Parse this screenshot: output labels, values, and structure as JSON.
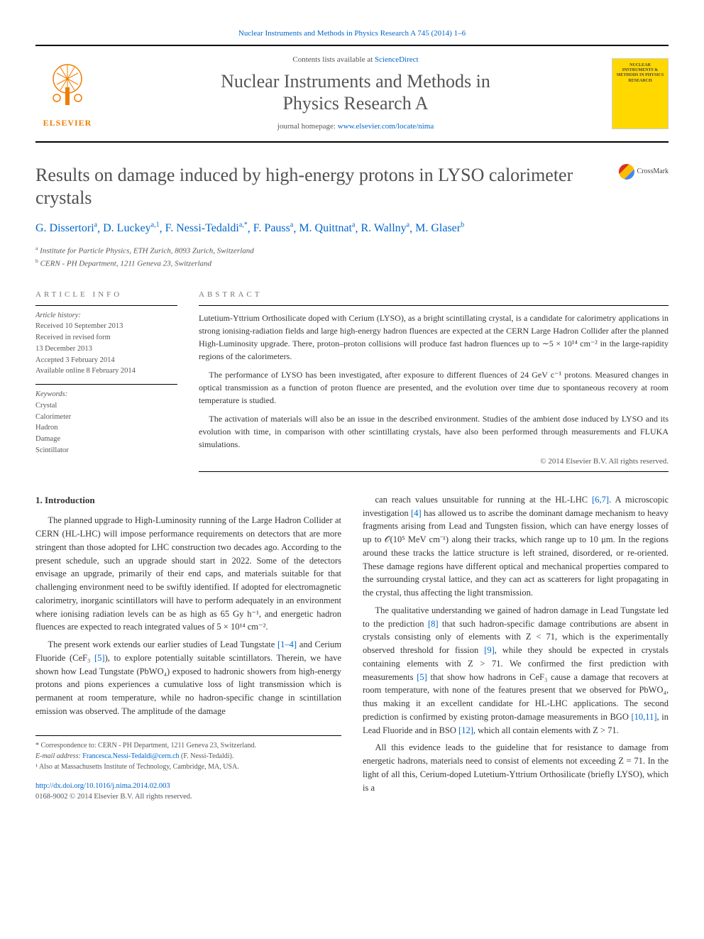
{
  "top_link": {
    "journal": "Nuclear Instruments and Methods in Physics Research A",
    "citation": "745 (2014) 1–6"
  },
  "header": {
    "contents_prefix": "Contents lists available at ",
    "contents_link": "ScienceDirect",
    "journal_name_line1": "Nuclear Instruments and Methods in",
    "journal_name_line2": "Physics Research A",
    "homepage_prefix": "journal homepage: ",
    "homepage_link": "www.elsevier.com/locate/nima",
    "elsevier_label": "ELSEVIER",
    "cover_text": "NUCLEAR INSTRUMENTS & METHODS IN PHYSICS RESEARCH"
  },
  "article": {
    "title": "Results on damage induced by high-energy protons in LYSO calorimeter crystals",
    "crossmark_label": "CrossMark"
  },
  "authors": [
    {
      "name": "G. Dissertori",
      "sup": "a"
    },
    {
      "name": "D. Luckey",
      "sup": "a,1"
    },
    {
      "name": "F. Nessi-Tedaldi",
      "sup": "a,*"
    },
    {
      "name": "F. Pauss",
      "sup": "a"
    },
    {
      "name": "M. Quittnat",
      "sup": "a"
    },
    {
      "name": "R. Wallny",
      "sup": "a"
    },
    {
      "name": "M. Glaser",
      "sup": "b"
    }
  ],
  "affiliations": [
    {
      "sup": "a",
      "text": "Institute for Particle Physics, ETH Zurich, 8093 Zurich, Switzerland"
    },
    {
      "sup": "b",
      "text": "CERN - PH Department, 1211 Geneva 23, Switzerland"
    }
  ],
  "info": {
    "label": "ARTICLE INFO",
    "history_label": "Article history:",
    "history": [
      "Received 10 September 2013",
      "Received in revised form",
      "13 December 2013",
      "Accepted 3 February 2014",
      "Available online 8 February 2014"
    ],
    "keywords_label": "Keywords:",
    "keywords": [
      "Crystal",
      "Calorimeter",
      "Hadron",
      "Damage",
      "Scintillator"
    ]
  },
  "abstract": {
    "label": "ABSTRACT",
    "paragraphs": [
      "Lutetium-Yttrium Orthosilicate doped with Cerium (LYSO), as a bright scintillating crystal, is a candidate for calorimetry applications in strong ionising-radiation fields and large high-energy hadron fluences are expected at the CERN Large Hadron Collider after the planned High-Luminosity upgrade. There, proton–proton collisions will produce fast hadron fluences up to ∼5 × 10¹⁴ cm⁻² in the large-rapidity regions of the calorimeters.",
      "The performance of LYSO has been investigated, after exposure to different fluences of 24 GeV c⁻¹ protons. Measured changes in optical transmission as a function of proton fluence are presented, and the evolution over time due to spontaneous recovery at room temperature is studied.",
      "The activation of materials will also be an issue in the described environment. Studies of the ambient dose induced by LYSO and its evolution with time, in comparison with other scintillating crystals, have also been performed through measurements and FLUKA simulations."
    ],
    "copyright": "© 2014 Elsevier B.V. All rights reserved."
  },
  "body": {
    "section_title": "1.  Introduction",
    "col1": [
      "The planned upgrade to High-Luminosity running of the Large Hadron Collider at CERN (HL-LHC) will impose performance requirements on detectors that are more stringent than those adopted for LHC construction two decades ago. According to the present schedule, such an upgrade should start in 2022. Some of the detectors envisage an upgrade, primarily of their end caps, and materials suitable for that challenging environment need to be swiftly identified. If adopted for electromagnetic calorimetry, inorganic scintillators will have to perform adequately in an environment where ionising radiation levels can be as high as 65 Gy h⁻¹, and energetic hadron fluences are expected to reach integrated values of 5 × 10¹⁴ cm⁻².",
      "The present work extends our earlier studies of Lead Tungstate [1–4] and Cerium Fluoride (CeF₃ [5]), to explore potentially suitable scintillators. Therein, we have shown how Lead Tungstate (PbWO₄) exposed to hadronic showers from high-energy protons and pions experiences a cumulative loss of light transmission which is permanent at room temperature, while no hadron-specific change in scintillation emission was observed. The amplitude of the damage"
    ],
    "col2": [
      "can reach values unsuitable for running at the HL-LHC [6,7]. A microscopic investigation [4] has allowed us to ascribe the dominant damage mechanism to heavy fragments arising from Lead and Tungsten fission, which can have energy losses of up to 𝒪(10⁵ MeV cm⁻¹) along their tracks, which range up to 10 μm. In the regions around these tracks the lattice structure is left strained, disordered, or re-oriented. These damage regions have different optical and mechanical properties compared to the surrounding crystal lattice, and they can act as scatterers for light propagating in the crystal, thus affecting the light transmission.",
      "The qualitative understanding we gained of hadron damage in Lead Tungstate led to the prediction [8] that such hadron-specific damage contributions are absent in crystals consisting only of elements with Z < 71, which is the experimentally observed threshold for fission [9], while they should be expected in crystals containing elements with Z > 71. We confirmed the first prediction with measurements [5] that show how hadrons in CeF₃ cause a damage that recovers at room temperature, with none of the features present that we observed for PbWO₄, thus making it an excellent candidate for HL-LHC applications. The second prediction is confirmed by existing proton-damage measurements in BGO [10,11], in Lead Fluoride and in BSO [12], which all contain elements with Z > 71.",
      "All this evidence leads to the guideline that for resistance to damage from energetic hadrons, materials need to consist of elements not exceeding Z = 71. In the light of all this, Cerium-doped Lutetium-Yttrium Orthosilicate (briefly LYSO), which is a"
    ]
  },
  "footnotes": {
    "corr": "* Correspondence to: CERN - PH Department, 1211 Geneva 23, Switzerland.",
    "email_label": "E-mail address: ",
    "email": "Francesca.Nessi-Tedaldi@cern.ch",
    "email_name": " (F. Nessi-Tedaldi).",
    "note1": "¹ Also at Massachusetts Institute of Technology, Cambridge, MA, USA."
  },
  "footer": {
    "doi": "http://dx.doi.org/10.1016/j.nima.2014.02.003",
    "issn": "0168-9002 © 2014 Elsevier B.V. All rights reserved."
  },
  "refs": {
    "r1_4": "[1–4]",
    "r5": "[5]",
    "r6_7": "[6,7]",
    "r4": "[4]",
    "r8": "[8]",
    "r9": "[9]",
    "r10_11": "[10,11]",
    "r12": "[12]"
  },
  "colors": {
    "link": "#0066cc",
    "elsevier_orange": "#f07d00",
    "cover_yellow": "#ffd800",
    "text": "#333333",
    "muted": "#555555"
  }
}
